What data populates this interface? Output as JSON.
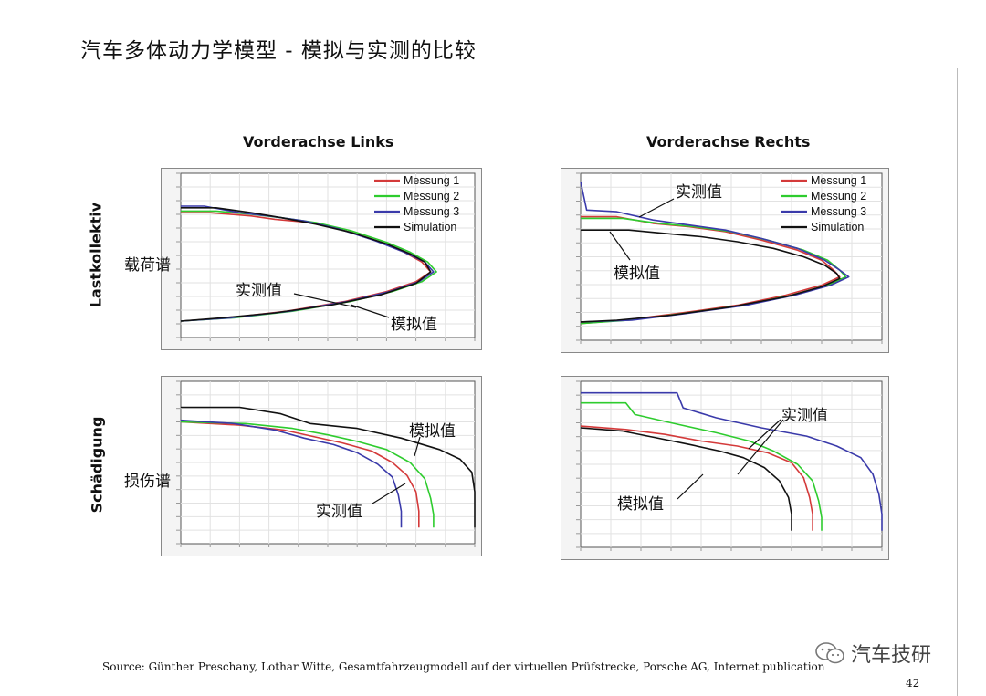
{
  "slide": {
    "title": "汽车多体动力学模型 - 模拟与实测的比较",
    "source": "Source: Günther Preschany, Lothar Witte, Gesamtfahrzeugmodell auf der virtuellen Prüfstrecke, Porsche AG, Internet publication",
    "page_number": "42",
    "brand": "汽车技研"
  },
  "headers": {
    "col_left": "Vorderachse Links",
    "col_right": "Vorderachse Rechts",
    "row_top": "Lastkollektiv",
    "row_bottom": "Schädigung"
  },
  "annotations": {
    "load_spectrum": "载荷谱",
    "damage_spectrum": "损伤谱",
    "measured": "实测值",
    "simulated": "模拟值"
  },
  "colors": {
    "Messung 1": "#d43a3a",
    "Messung 2": "#2ecc2e",
    "Messung 3": "#3a3aaa",
    "Simulation": "#111111"
  },
  "chart_data": [
    {
      "id": "tl",
      "type": "line",
      "title": "Vorderachse Links",
      "legend": [
        "Messung 1",
        "Messung 2",
        "Messung 3",
        "Simulation"
      ],
      "legend_position": "top-right",
      "grid": true,
      "series": [
        {
          "name": "Messung 1",
          "points": [
            [
              0,
              0.76
            ],
            [
              5,
              0.76
            ],
            [
              12,
              0.74
            ],
            [
              16,
              0.72
            ],
            [
              22,
              0.7
            ],
            [
              28,
              0.65
            ],
            [
              34,
              0.58
            ],
            [
              38,
              0.52
            ],
            [
              41,
              0.46
            ],
            [
              42.5,
              0.4
            ],
            [
              40,
              0.34
            ],
            [
              35,
              0.28
            ],
            [
              28,
              0.22
            ],
            [
              18,
              0.16
            ],
            [
              8,
              0.12
            ],
            [
              0,
              0.1
            ]
          ]
        },
        {
          "name": "Messung 2",
          "points": [
            [
              0,
              0.77
            ],
            [
              6,
              0.77
            ],
            [
              12,
              0.75
            ],
            [
              17,
              0.73
            ],
            [
              23,
              0.7
            ],
            [
              29,
              0.65
            ],
            [
              35,
              0.58
            ],
            [
              39,
              0.52
            ],
            [
              42,
              0.46
            ],
            [
              43.5,
              0.4
            ],
            [
              41,
              0.34
            ],
            [
              36,
              0.28
            ],
            [
              29,
              0.22
            ],
            [
              19,
              0.16
            ],
            [
              9,
              0.12
            ],
            [
              0,
              0.1
            ]
          ]
        },
        {
          "name": "Messung 3",
          "points": [
            [
              0,
              0.8
            ],
            [
              4,
              0.8
            ],
            [
              10,
              0.76
            ],
            [
              15,
              0.74
            ],
            [
              21,
              0.71
            ],
            [
              27,
              0.66
            ],
            [
              33,
              0.59
            ],
            [
              38,
              0.52
            ],
            [
              41.5,
              0.46
            ],
            [
              43,
              0.4
            ],
            [
              40.5,
              0.34
            ],
            [
              35.5,
              0.28
            ],
            [
              28.5,
              0.22
            ],
            [
              18.5,
              0.16
            ],
            [
              8.5,
              0.12
            ],
            [
              0,
              0.1
            ]
          ]
        },
        {
          "name": "Simulation",
          "points": [
            [
              0,
              0.79
            ],
            [
              6,
              0.79
            ],
            [
              12,
              0.76
            ],
            [
              17,
              0.73
            ],
            [
              23,
              0.69
            ],
            [
              29,
              0.64
            ],
            [
              35,
              0.57
            ],
            [
              39,
              0.51
            ],
            [
              41.5,
              0.46
            ],
            [
              42.5,
              0.4
            ],
            [
              40,
              0.33
            ],
            [
              34,
              0.26
            ],
            [
              26,
              0.2
            ],
            [
              16,
              0.15
            ],
            [
              7,
              0.12
            ],
            [
              0,
              0.1
            ]
          ]
        }
      ]
    },
    {
      "id": "tr",
      "type": "line",
      "title": "Vorderachse Rechts",
      "legend": [
        "Messung 1",
        "Messung 2",
        "Messung 3",
        "Simulation"
      ],
      "legend_position": "top-right",
      "grid": true,
      "series": [
        {
          "name": "Messung 1",
          "points": [
            [
              0,
              0.74
            ],
            [
              6,
              0.74
            ],
            [
              12,
              0.7
            ],
            [
              18,
              0.68
            ],
            [
              24,
              0.65
            ],
            [
              30,
              0.6
            ],
            [
              36,
              0.54
            ],
            [
              40,
              0.48
            ],
            [
              42,
              0.42
            ],
            [
              43,
              0.38
            ],
            [
              40,
              0.33
            ],
            [
              34,
              0.27
            ],
            [
              26,
              0.21
            ],
            [
              16,
              0.16
            ],
            [
              7,
              0.12
            ],
            [
              0,
              0.1
            ]
          ]
        },
        {
          "name": "Messung 2",
          "points": [
            [
              0,
              0.73
            ],
            [
              7,
              0.73
            ],
            [
              13,
              0.7
            ],
            [
              19,
              0.68
            ],
            [
              25,
              0.65
            ],
            [
              31,
              0.6
            ],
            [
              37,
              0.54
            ],
            [
              41,
              0.48
            ],
            [
              43,
              0.42
            ],
            [
              44,
              0.38
            ],
            [
              41,
              0.33
            ],
            [
              35,
              0.27
            ],
            [
              27,
              0.21
            ],
            [
              17,
              0.16
            ],
            [
              8,
              0.12
            ],
            [
              0,
              0.1
            ]
          ]
        },
        {
          "name": "Messung 3",
          "points": [
            [
              0,
              0.95
            ],
            [
              1,
              0.78
            ],
            [
              6,
              0.77
            ],
            [
              12,
              0.72
            ],
            [
              18,
              0.69
            ],
            [
              24,
              0.66
            ],
            [
              30,
              0.61
            ],
            [
              36,
              0.55
            ],
            [
              40.5,
              0.48
            ],
            [
              43,
              0.42
            ],
            [
              44.5,
              0.38
            ],
            [
              41.5,
              0.33
            ],
            [
              35.5,
              0.27
            ],
            [
              27.5,
              0.21
            ],
            [
              17.5,
              0.16
            ],
            [
              8.5,
              0.12
            ],
            [
              0,
              0.11
            ]
          ]
        },
        {
          "name": "Simulation",
          "points": [
            [
              0,
              0.66
            ],
            [
              8,
              0.66
            ],
            [
              14,
              0.64
            ],
            [
              20,
              0.62
            ],
            [
              26,
              0.59
            ],
            [
              32,
              0.55
            ],
            [
              37,
              0.5
            ],
            [
              40.5,
              0.45
            ],
            [
              42.5,
              0.4
            ],
            [
              43,
              0.37
            ],
            [
              40,
              0.32
            ],
            [
              34,
              0.26
            ],
            [
              25,
              0.2
            ],
            [
              15,
              0.15
            ],
            [
              6,
              0.12
            ],
            [
              0,
              0.11
            ]
          ]
        }
      ]
    },
    {
      "id": "bl",
      "type": "line",
      "title": "",
      "legend": [],
      "grid": true,
      "series": [
        {
          "name": "Messung 1",
          "points": [
            [
              0,
              0.75
            ],
            [
              20,
              0.73
            ],
            [
              35,
              0.7
            ],
            [
              45,
              0.66
            ],
            [
              55,
              0.62
            ],
            [
              65,
              0.57
            ],
            [
              72,
              0.5
            ],
            [
              77,
              0.42
            ],
            [
              80,
              0.32
            ],
            [
              81,
              0.2
            ],
            [
              81,
              0.1
            ]
          ]
        },
        {
          "name": "Messung 2",
          "points": [
            [
              0,
              0.75
            ],
            [
              22,
              0.74
            ],
            [
              38,
              0.71
            ],
            [
              50,
              0.67
            ],
            [
              60,
              0.63
            ],
            [
              70,
              0.58
            ],
            [
              78,
              0.5
            ],
            [
              83,
              0.4
            ],
            [
              85,
              0.28
            ],
            [
              86,
              0.18
            ],
            [
              86,
              0.1
            ]
          ]
        },
        {
          "name": "Messung 3",
          "points": [
            [
              0,
              0.76
            ],
            [
              18,
              0.74
            ],
            [
              32,
              0.7
            ],
            [
              42,
              0.65
            ],
            [
              52,
              0.61
            ],
            [
              60,
              0.56
            ],
            [
              67,
              0.49
            ],
            [
              72,
              0.41
            ],
            [
              74,
              0.3
            ],
            [
              75,
              0.2
            ],
            [
              75,
              0.1
            ]
          ]
        },
        {
          "name": "Simulation",
          "points": [
            [
              0,
              0.84
            ],
            [
              20,
              0.84
            ],
            [
              34,
              0.8
            ],
            [
              44,
              0.74
            ],
            [
              60,
              0.71
            ],
            [
              75,
              0.65
            ],
            [
              88,
              0.58
            ],
            [
              95,
              0.52
            ],
            [
              99,
              0.44
            ],
            [
              100,
              0.32
            ],
            [
              100,
              0.2
            ],
            [
              100,
              0.1
            ]
          ]
        }
      ]
    },
    {
      "id": "br",
      "type": "line",
      "title": "",
      "legend": [],
      "grid": true,
      "series": [
        {
          "name": "Messung 1",
          "points": [
            [
              0,
              0.73
            ],
            [
              15,
              0.71
            ],
            [
              28,
              0.68
            ],
            [
              40,
              0.64
            ],
            [
              52,
              0.61
            ],
            [
              62,
              0.57
            ],
            [
              70,
              0.51
            ],
            [
              74,
              0.42
            ],
            [
              76,
              0.3
            ],
            [
              77,
              0.2
            ],
            [
              77,
              0.1
            ]
          ]
        },
        {
          "name": "Messung 2",
          "points": [
            [
              0,
              0.87
            ],
            [
              15,
              0.87
            ],
            [
              18,
              0.8
            ],
            [
              30,
              0.75
            ],
            [
              45,
              0.69
            ],
            [
              56,
              0.64
            ],
            [
              64,
              0.58
            ],
            [
              72,
              0.5
            ],
            [
              77,
              0.4
            ],
            [
              79,
              0.28
            ],
            [
              80,
              0.18
            ],
            [
              80,
              0.1
            ]
          ]
        },
        {
          "name": "Messung 3",
          "points": [
            [
              0,
              0.93
            ],
            [
              32,
              0.93
            ],
            [
              34,
              0.84
            ],
            [
              45,
              0.78
            ],
            [
              60,
              0.72
            ],
            [
              75,
              0.67
            ],
            [
              85,
              0.61
            ],
            [
              93,
              0.54
            ],
            [
              97,
              0.44
            ],
            [
              99,
              0.32
            ],
            [
              100,
              0.2
            ],
            [
              100,
              0.1
            ]
          ]
        },
        {
          "name": "Simulation",
          "points": [
            [
              0,
              0.72
            ],
            [
              14,
              0.7
            ],
            [
              25,
              0.66
            ],
            [
              36,
              0.62
            ],
            [
              46,
              0.58
            ],
            [
              54,
              0.54
            ],
            [
              61,
              0.48
            ],
            [
              66,
              0.4
            ],
            [
              69,
              0.3
            ],
            [
              70,
              0.2
            ],
            [
              70,
              0.1
            ]
          ]
        }
      ]
    }
  ]
}
